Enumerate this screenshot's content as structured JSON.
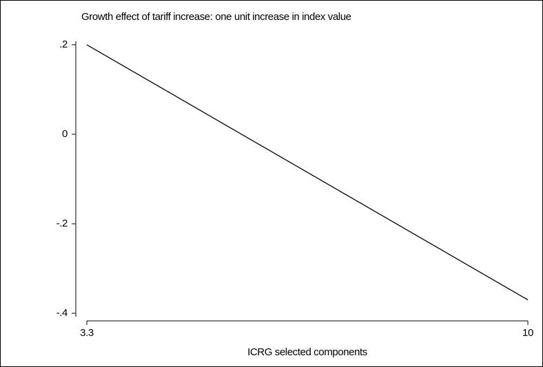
{
  "chart_data": {
    "type": "line",
    "title": "Growth effect of tariff increase: one unit increase in index value",
    "x_label": "ICRG selected components",
    "x": [
      3.3,
      10
    ],
    "values": [
      0.2,
      -0.37
    ],
    "color": "#000000",
    "xlim": [
      3.3,
      10
    ],
    "xticks": [
      3.3,
      10
    ],
    "ylim": [
      -0.4,
      0.2
    ],
    "yticks": [
      {
        "value": 0.2,
        "label": ".2"
      },
      0,
      {
        "value": -0.2,
        "label": "-.2"
      },
      {
        "value": -0.4,
        "label": "-.4"
      }
    ],
    "grid": false
  }
}
